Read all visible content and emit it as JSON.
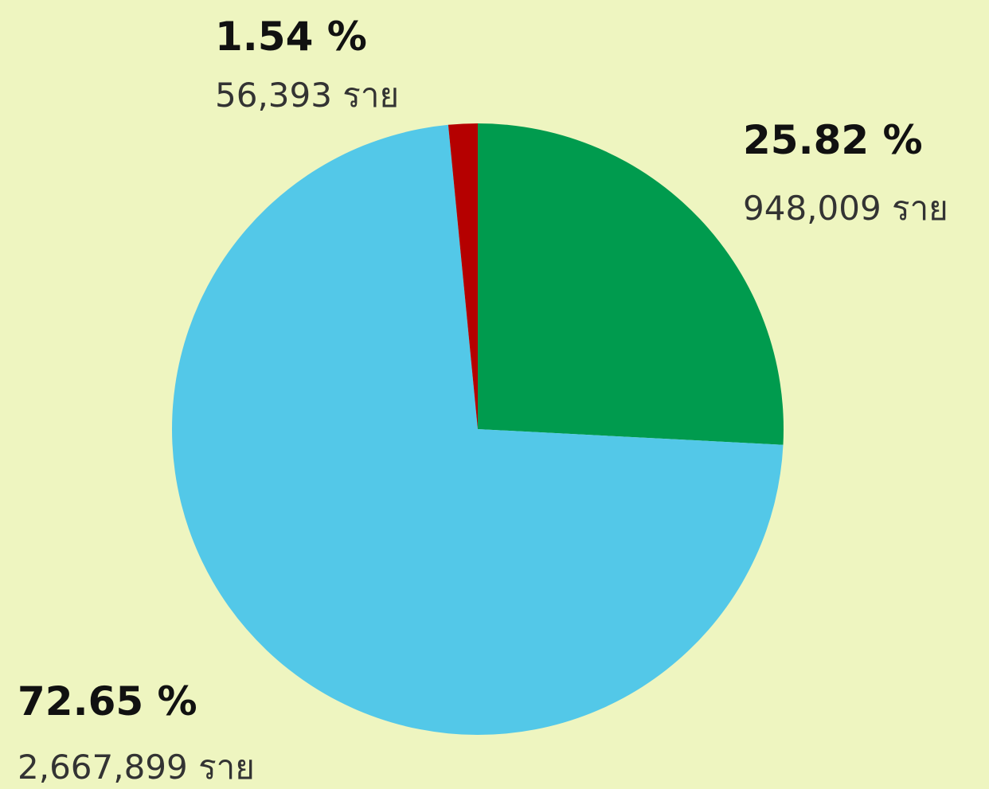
{
  "chart_data": {
    "type": "pie",
    "values": [
      25.82,
      72.65,
      1.54
    ],
    "value_labels": [
      "25.82 %",
      "72.65 %",
      "1.54 %"
    ],
    "count_labels": [
      "948,009 ราย",
      "2,667,899 ราย",
      "56,393 ราย"
    ],
    "colors": [
      "#009b4e",
      "#53c8e8",
      "#b50000"
    ]
  }
}
